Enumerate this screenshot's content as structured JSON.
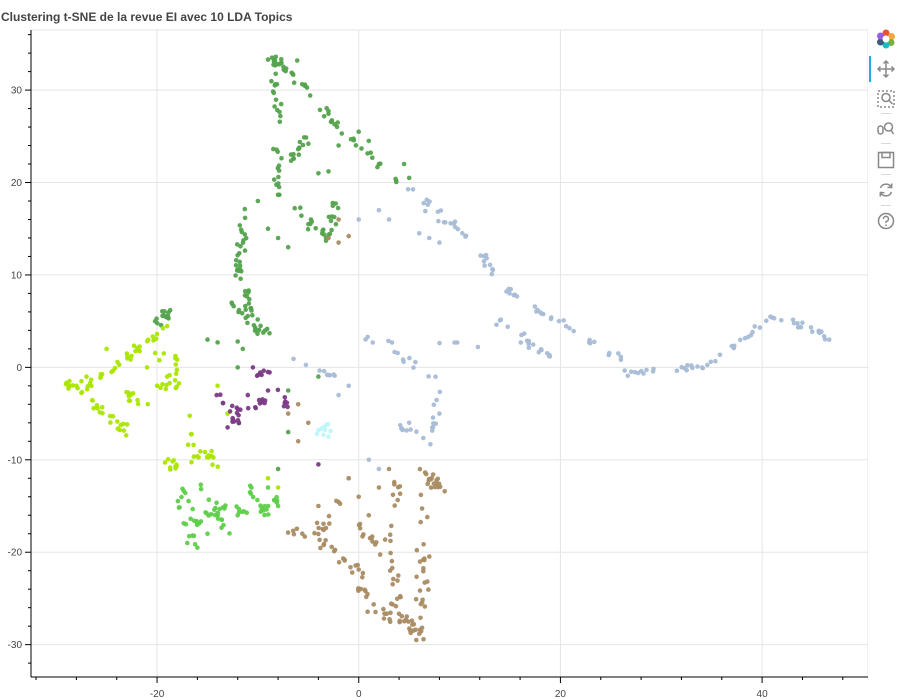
{
  "title": "Clustering t-SNE de la revue EI avec 10 LDA Topics",
  "toolbar": {
    "tools": [
      {
        "name": "bokeh-logo-icon"
      },
      {
        "name": "pan-icon",
        "active": true
      },
      {
        "name": "box-zoom-icon"
      },
      {
        "name": "wheel-zoom-icon"
      },
      {
        "name": "save-icon"
      },
      {
        "name": "reset-icon"
      },
      {
        "name": "help-icon"
      }
    ]
  },
  "chart_data": {
    "type": "scatter",
    "title": "Clustering t-SNE de la revue EI avec 10 LDA Topics",
    "xlabel": "",
    "ylabel": "",
    "xlim": [
      -32.5,
      50.5
    ],
    "ylim": [
      -33.5,
      36.5
    ],
    "x_ticks": [
      -20,
      0,
      20,
      40
    ],
    "y_ticks": [
      -30,
      -20,
      -10,
      0,
      10,
      20,
      30
    ],
    "grid": true,
    "clusters": [
      {
        "color": "#54a34d",
        "segments": [
          [
            -8.5,
            33.5,
            -6,
            31
          ],
          [
            -6,
            31,
            -2,
            26
          ],
          [
            -2,
            26,
            4,
            20
          ],
          [
            -8.5,
            33,
            -8,
            27
          ],
          [
            -8,
            27,
            -8,
            19
          ],
          [
            -11,
            17,
            -12,
            11
          ],
          [
            -12,
            11,
            -11,
            7
          ],
          [
            -11,
            7,
            -9,
            3
          ],
          [
            -6,
            17,
            -3,
            14
          ],
          [
            -3,
            14,
            -2,
            18
          ],
          [
            -20,
            5,
            -18.5,
            6
          ],
          [
            -7,
            22,
            -5,
            25
          ],
          [
            -13,
            8,
            -10,
            4
          ]
        ],
        "points": [
          [
            -9,
            33.3
          ],
          [
            -8.6,
            33.5
          ],
          [
            -8.3,
            33.2
          ],
          [
            -6.4,
            30.8
          ],
          [
            -6.1,
            33.2
          ],
          [
            -4,
            21
          ],
          [
            -3,
            21.2
          ],
          [
            -2,
            24
          ],
          [
            0,
            25.5
          ],
          [
            1,
            24.5
          ],
          [
            2,
            22
          ],
          [
            5,
            20.5
          ],
          [
            4.5,
            22
          ],
          [
            -15,
            3
          ],
          [
            -14,
            2.7
          ],
          [
            -12,
            2.8
          ],
          [
            -11.5,
            2
          ],
          [
            -12,
            0
          ],
          [
            -7,
            -2.5
          ],
          [
            -4,
            -1
          ],
          [
            -7,
            -7
          ],
          [
            -8,
            -11
          ],
          [
            -10,
            18
          ],
          [
            -9,
            15
          ],
          [
            -8,
            14
          ],
          [
            -7,
            13
          ]
        ],
        "n": 190,
        "spread": 0.55
      },
      {
        "color": "#a8bcd6",
        "segments": [
          [
            5,
            19.5,
            10,
            15
          ],
          [
            7,
            17,
            11,
            14
          ],
          [
            12,
            12.5,
            14,
            9
          ],
          [
            14,
            9,
            18,
            6
          ],
          [
            18,
            6,
            22,
            3.5
          ],
          [
            22,
            3.5,
            26,
            1
          ],
          [
            13,
            5.5,
            18,
            2
          ],
          [
            16,
            3,
            19,
            1
          ],
          [
            26,
            -0.5,
            30,
            -0.5
          ],
          [
            30,
            -0.5,
            34,
            0
          ],
          [
            34,
            0,
            38,
            3
          ],
          [
            38,
            3,
            41,
            5.5
          ],
          [
            41,
            5.5,
            44,
            4.5
          ],
          [
            44,
            4.5,
            47,
            3
          ],
          [
            0,
            3,
            12,
            2.5
          ],
          [
            3,
            2,
            8,
            -1.5
          ],
          [
            8,
            -1.5,
            7,
            -8
          ],
          [
            7,
            -8,
            4,
            -6.5
          ],
          [
            -7,
            1,
            -2,
            -1
          ]
        ],
        "points": [
          [
            7,
            14
          ],
          [
            8,
            13.5
          ],
          [
            6,
            14.5
          ],
          [
            2,
            17
          ],
          [
            3,
            16
          ],
          [
            0,
            16
          ],
          [
            -2,
            -3
          ],
          [
            -1,
            -2
          ],
          [
            1,
            -10
          ],
          [
            -1,
            -12
          ],
          [
            2,
            -11
          ],
          [
            5,
            -6
          ],
          [
            8,
            -5
          ]
        ],
        "n": 180,
        "spread": 0.45
      },
      {
        "color": "#aa8c63",
        "segments": [
          [
            4,
            -12,
            3,
            -20
          ],
          [
            3,
            -20,
            4,
            -26
          ],
          [
            4,
            -26,
            6,
            -29.5
          ],
          [
            6,
            -29.5,
            6.5,
            -24
          ],
          [
            6.5,
            -24,
            6,
            -18
          ],
          [
            6,
            -18,
            7,
            -11
          ],
          [
            -7,
            -17,
            -3,
            -19.5
          ],
          [
            -3,
            -19.5,
            0,
            -22
          ],
          [
            0,
            -22,
            1,
            -26
          ],
          [
            1,
            -26,
            5,
            -28
          ],
          [
            -2,
            -14,
            -4,
            -18
          ],
          [
            0,
            -17,
            2,
            -20
          ],
          [
            7.5,
            -12,
            8,
            -13
          ]
        ],
        "points": [
          [
            -3,
            14
          ],
          [
            -2,
            13.5
          ],
          [
            -1,
            14.2
          ],
          [
            -2,
            16
          ],
          [
            -6,
            -4
          ],
          [
            -7,
            -5
          ],
          [
            -5,
            -6
          ],
          [
            -6,
            -8
          ],
          [
            1,
            -16
          ],
          [
            2,
            -13
          ],
          [
            3,
            -11
          ],
          [
            -4,
            -15
          ],
          [
            -1,
            -12
          ],
          [
            0,
            -14
          ]
        ],
        "n": 160,
        "spread": 0.75
      },
      {
        "color": "#aae600",
        "segments": [
          [
            -29,
            -1.5,
            -27,
            -3
          ],
          [
            -27,
            -3,
            -25,
            -5
          ],
          [
            -25,
            -5,
            -23,
            -7
          ],
          [
            -27,
            -2,
            -24,
            0
          ],
          [
            -24,
            0,
            -22,
            2
          ],
          [
            -22,
            2,
            -19,
            4.5
          ],
          [
            -20,
            3,
            -19,
            -3
          ],
          [
            -18,
            1,
            -18,
            -3
          ],
          [
            -23,
            -3,
            -21,
            -4
          ],
          [
            -17,
            -4,
            -16,
            -10
          ],
          [
            -15,
            -9,
            -14,
            -11
          ],
          [
            -19,
            -9.5,
            -18,
            -11
          ]
        ],
        "points": [
          [
            -28,
            -2
          ],
          [
            -27.5,
            -1.5
          ],
          [
            -27,
            -1
          ],
          [
            -25,
            2
          ],
          [
            -23,
            1.5
          ],
          [
            -21,
            0
          ],
          [
            -20,
            -2
          ],
          [
            -14,
            -2
          ],
          [
            -19,
            -1
          ],
          [
            -8,
            -13
          ],
          [
            -9,
            -12
          ],
          [
            -13,
            -5
          ]
        ],
        "n": 120,
        "spread": 0.6
      },
      {
        "color": "#5ecf4a",
        "segments": [
          [
            -18,
            -12,
            -16,
            -17
          ],
          [
            -16,
            -17,
            -14,
            -15
          ],
          [
            -14,
            -15,
            -10,
            -16
          ],
          [
            -10,
            -16,
            -8,
            -14
          ],
          [
            -18,
            -14,
            -16,
            -19
          ],
          [
            -16,
            -12,
            -13,
            -18
          ],
          [
            -11,
            -13,
            -9,
            -16
          ]
        ],
        "points": [
          [
            -17,
            -19
          ],
          [
            -16,
            -19.5
          ],
          [
            -15,
            -18
          ],
          [
            -14,
            -16
          ],
          [
            -12,
            -16
          ],
          [
            -9,
            -13
          ],
          [
            -8,
            -15
          ]
        ],
        "n": 70,
        "spread": 0.55
      },
      {
        "color": "#7b3b86",
        "segments": [
          [
            -14,
            -3,
            -12,
            -5
          ],
          [
            -12,
            -5,
            -10,
            -4
          ],
          [
            -10,
            -4,
            -8,
            -2
          ],
          [
            -10,
            -1,
            -9,
            0
          ],
          [
            -13,
            -5.5,
            -12,
            -6
          ],
          [
            -8,
            -3,
            -7,
            -4
          ]
        ],
        "points": [
          [
            -13,
            -6.5
          ],
          [
            -12.5,
            -5.5
          ],
          [
            -10.5,
            0
          ],
          [
            -9,
            -0.5
          ],
          [
            -4,
            -10.5
          ],
          [
            -11,
            -3
          ],
          [
            -9,
            -2.5
          ]
        ],
        "n": 40,
        "spread": 0.5
      },
      {
        "color": "#c0f6f8",
        "segments": [
          [
            -4,
            -7,
            -3,
            -6
          ]
        ],
        "points": [
          [
            -3.5,
            -7.3
          ],
          [
            -2.8,
            -6.9
          ],
          [
            -3.2,
            -6.2
          ],
          [
            -4,
            -6.8
          ],
          [
            -3,
            -7.5
          ]
        ],
        "n": 6,
        "spread": 0.3
      }
    ]
  }
}
